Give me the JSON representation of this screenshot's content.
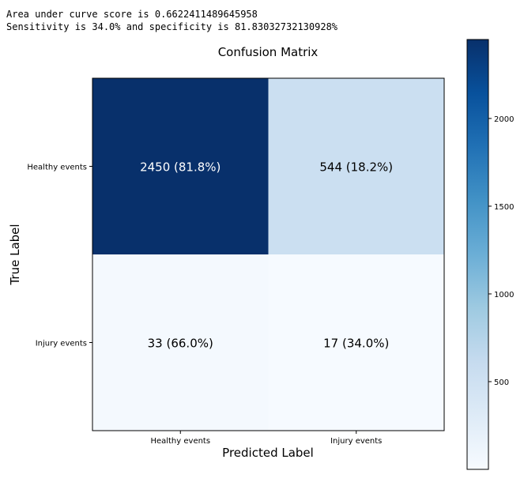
{
  "output": {
    "auc_line": "Area under curve score is 0.6622411489645958",
    "sens_line": "Sensitivity is 34.0% and specificity is 81.83032732130928%"
  },
  "chart_data": {
    "type": "heatmap",
    "title": "Confusion Matrix",
    "xlabel": "Predicted Label",
    "ylabel": "True Label",
    "x_categories": [
      "Healthy events",
      "Injury events"
    ],
    "y_categories": [
      "Healthy events",
      "Injury events"
    ],
    "values": [
      [
        2450,
        544
      ],
      [
        33,
        17
      ]
    ],
    "cell_labels": [
      [
        "2450 (81.8%)",
        "544 (18.2%)"
      ],
      [
        "33 (66.0%)",
        "17 (34.0%)"
      ]
    ],
    "colormap": "Blues",
    "colorbar": {
      "range": [
        0,
        2450
      ],
      "ticks": [
        500,
        1000,
        1500,
        2000
      ]
    },
    "colors": {
      "dark": "#08306b",
      "light": "#f7fbff",
      "mid": "#c6dbef"
    },
    "grid": false
  }
}
